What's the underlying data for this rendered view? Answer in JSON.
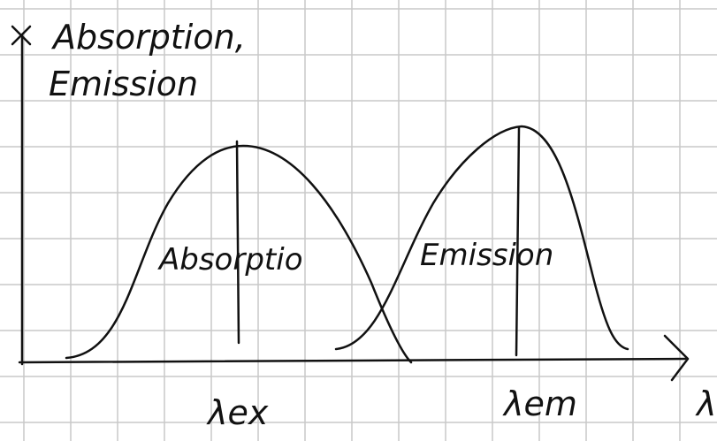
{
  "axis": {
    "y_label_line1": "Absorption,",
    "y_label_line2": "Emission",
    "x_label": "λ"
  },
  "curves": [
    {
      "label": "Absorptio",
      "peak_label": "λex"
    },
    {
      "label": "Emission",
      "peak_label": "λem"
    }
  ]
}
